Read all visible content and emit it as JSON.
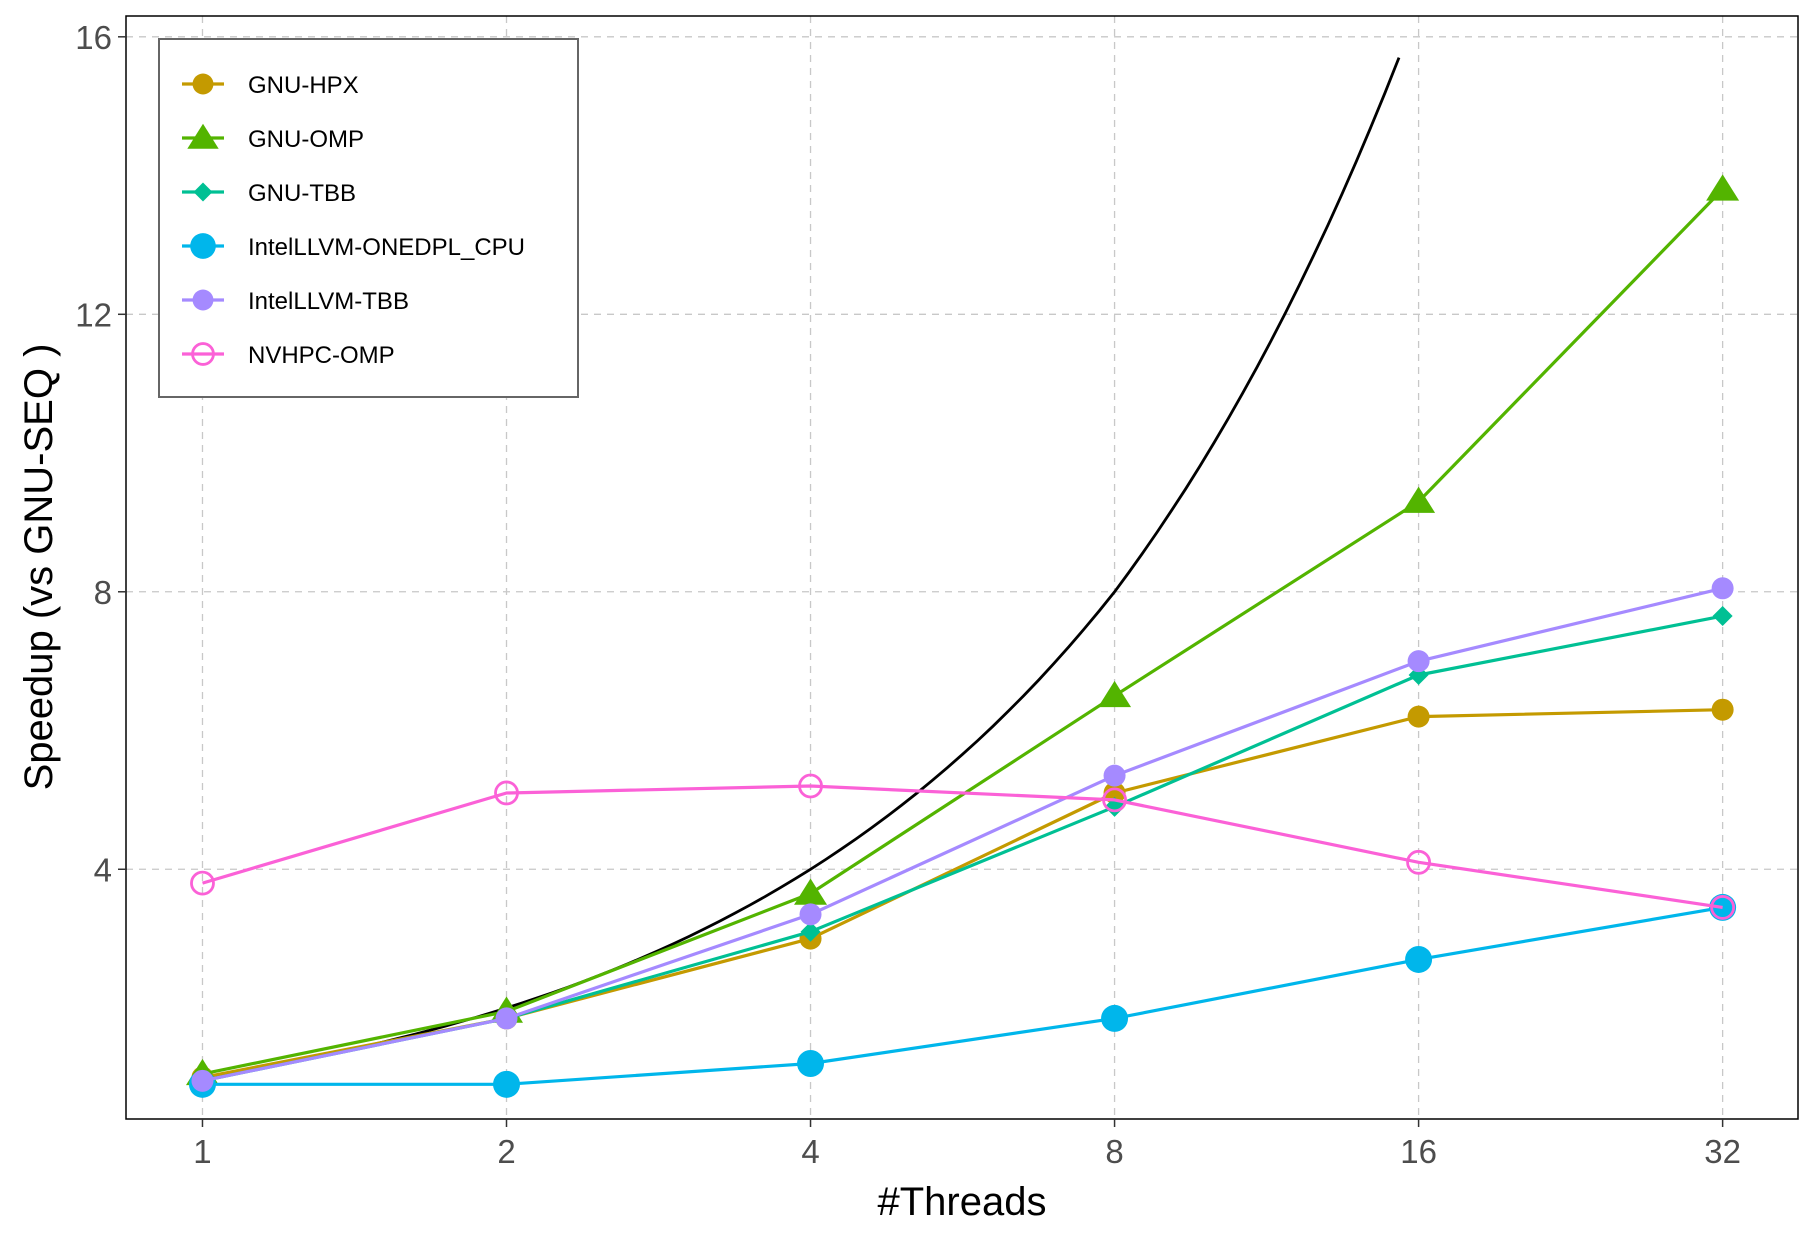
{
  "chart_data": {
    "type": "line",
    "xlabel": "#Threads",
    "ylabel": "Speedup (vs  GNU-SEQ )",
    "x": [
      1,
      2,
      4,
      8,
      16,
      32
    ],
    "x_tick_labels": [
      "1",
      "2",
      "4",
      "8",
      "16",
      "32"
    ],
    "x_scale": "log2",
    "xlim": [
      0.84,
      38
    ],
    "y_ticks": [
      4,
      8,
      12,
      16
    ],
    "y_tick_labels": [
      "4",
      "8",
      "12",
      "16"
    ],
    "ylim": [
      0.4,
      16.3
    ],
    "grid": true,
    "legend_position": "top-left",
    "series": [
      {
        "name": "GNU-HPX",
        "color": "#C49A00",
        "marker": "circle",
        "values": [
          1.0,
          1.85,
          3.0,
          5.1,
          6.2,
          6.3
        ]
      },
      {
        "name": "GNU-OMP",
        "color": "#53B400",
        "marker": "triangle",
        "values": [
          1.05,
          1.95,
          3.65,
          6.5,
          9.3,
          13.8
        ]
      },
      {
        "name": "GNU-TBB",
        "color": "#00C094",
        "marker": "diamond",
        "values": [
          0.95,
          1.85,
          3.1,
          4.9,
          6.8,
          7.65
        ]
      },
      {
        "name": "IntelLLVM-ONEDPL_CPU",
        "color": "#00B6EB",
        "marker": "circle-large",
        "values": [
          0.9,
          0.9,
          1.2,
          1.85,
          2.7,
          3.45
        ]
      },
      {
        "name": "IntelLLVM-TBB",
        "color": "#A58AFF",
        "marker": "circle",
        "values": [
          0.95,
          1.85,
          3.35,
          5.35,
          7.0,
          8.05
        ]
      },
      {
        "name": "NVHPC-OMP",
        "color": "#FB61D7",
        "marker": "circle-open",
        "values": [
          3.8,
          5.1,
          5.2,
          5.0,
          4.1,
          3.45
        ]
      }
    ],
    "reference_line": {
      "color": "#000000",
      "x": [
        1,
        2,
        4,
        8,
        15.3
      ],
      "values": [
        1,
        2,
        4,
        8,
        15.7
      ]
    }
  }
}
